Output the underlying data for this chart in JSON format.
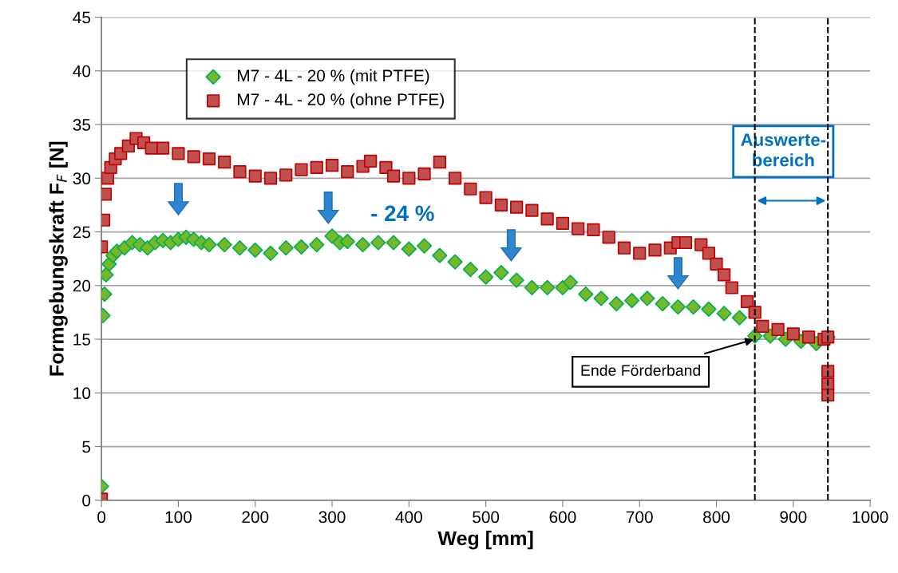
{
  "chart_data": {
    "type": "scatter",
    "xlabel": "Weg [mm]",
    "ylabel": "Formgebungskraft F$_{F}$ [N]",
    "xlim": [
      0,
      1000
    ],
    "xticks": [
      0,
      100,
      200,
      300,
      400,
      500,
      600,
      700,
      800,
      900,
      1000
    ],
    "ylim": [
      0,
      45
    ],
    "yticks": [
      0,
      5,
      10,
      15,
      20,
      25,
      30,
      35,
      40,
      45
    ],
    "grid": "y",
    "legend": "top left",
    "series": [
      {
        "name": "M7 - 4L - 20 % (mit PTFE)",
        "color": "#76b82a",
        "marker": "diamond",
        "x": [
          0,
          2,
          4,
          6,
          10,
          15,
          20,
          30,
          40,
          50,
          60,
          70,
          80,
          90,
          100,
          110,
          120,
          130,
          140,
          160,
          180,
          200,
          220,
          240,
          260,
          280,
          300,
          310,
          320,
          340,
          360,
          380,
          400,
          420,
          440,
          460,
          480,
          500,
          520,
          540,
          560,
          580,
          600,
          610,
          630,
          650,
          670,
          690,
          710,
          730,
          750,
          770,
          790,
          810,
          830,
          850,
          870,
          890,
          910,
          930,
          945
        ],
        "values": [
          1.3,
          17.2,
          19.2,
          21,
          22,
          22.8,
          23.2,
          23.5,
          24,
          23.8,
          23.5,
          24,
          24.2,
          24,
          24.3,
          24.5,
          24.3,
          24,
          23.8,
          23.8,
          23.5,
          23.3,
          23,
          23.5,
          23.6,
          23.8,
          24.6,
          24,
          24.1,
          23.8,
          24,
          24,
          23.4,
          23.7,
          22.8,
          22.2,
          21.5,
          20.8,
          21.2,
          20.5,
          19.8,
          19.8,
          19.8,
          20.3,
          19.2,
          18.8,
          18.3,
          18.6,
          18.8,
          18.3,
          18,
          18,
          17.8,
          17.4,
          17,
          15.3,
          15.3,
          15,
          14.8,
          14.6,
          15.2
        ]
      },
      {
        "name": "M7 - 4L - 20 % (ohne PTFE)",
        "color": "#c0504d",
        "marker": "square",
        "x": [
          0,
          0,
          3,
          5,
          8,
          12,
          18,
          25,
          35,
          45,
          55,
          65,
          80,
          100,
          120,
          140,
          160,
          180,
          200,
          220,
          240,
          260,
          280,
          300,
          320,
          340,
          350,
          370,
          380,
          400,
          420,
          440,
          460,
          480,
          500,
          520,
          540,
          560,
          580,
          600,
          620,
          640,
          660,
          680,
          700,
          720,
          740,
          750,
          760,
          780,
          790,
          800,
          810,
          820,
          840,
          850,
          860,
          880,
          900,
          920,
          940,
          945,
          945,
          945,
          945
        ],
        "values": [
          0.1,
          23.6,
          26.1,
          28.5,
          30,
          31,
          31.8,
          32.3,
          33,
          33.7,
          33.3,
          32.8,
          32.8,
          32.3,
          32,
          31.8,
          31.5,
          30.6,
          30.2,
          30,
          30.3,
          30.8,
          31,
          31.2,
          30.6,
          31.1,
          31.6,
          31,
          30.2,
          30,
          30.4,
          31.5,
          30,
          29,
          28.2,
          27.5,
          27.3,
          27,
          26.2,
          25.8,
          25.3,
          25.2,
          24.5,
          23.5,
          23,
          23.3,
          23.5,
          24,
          24,
          23.8,
          23,
          22,
          21,
          19.8,
          18.5,
          17.5,
          16.2,
          15.9,
          15.5,
          15.2,
          15,
          15.2,
          12,
          10.8,
          9.8
        ]
      }
    ],
    "ref_lines": [
      {
        "axis": "x",
        "value": 850,
        "color": "#000000",
        "line_style": "dashed"
      },
      {
        "axis": "x",
        "value": 945,
        "color": "#000000",
        "line_style": "dashed"
      }
    ],
    "annotations": [
      "- 24 %",
      "Auswerte-\nbereich",
      {
        "text": "Ende Förderband",
        "x": 850,
        "y": 15
      }
    ]
  }
}
